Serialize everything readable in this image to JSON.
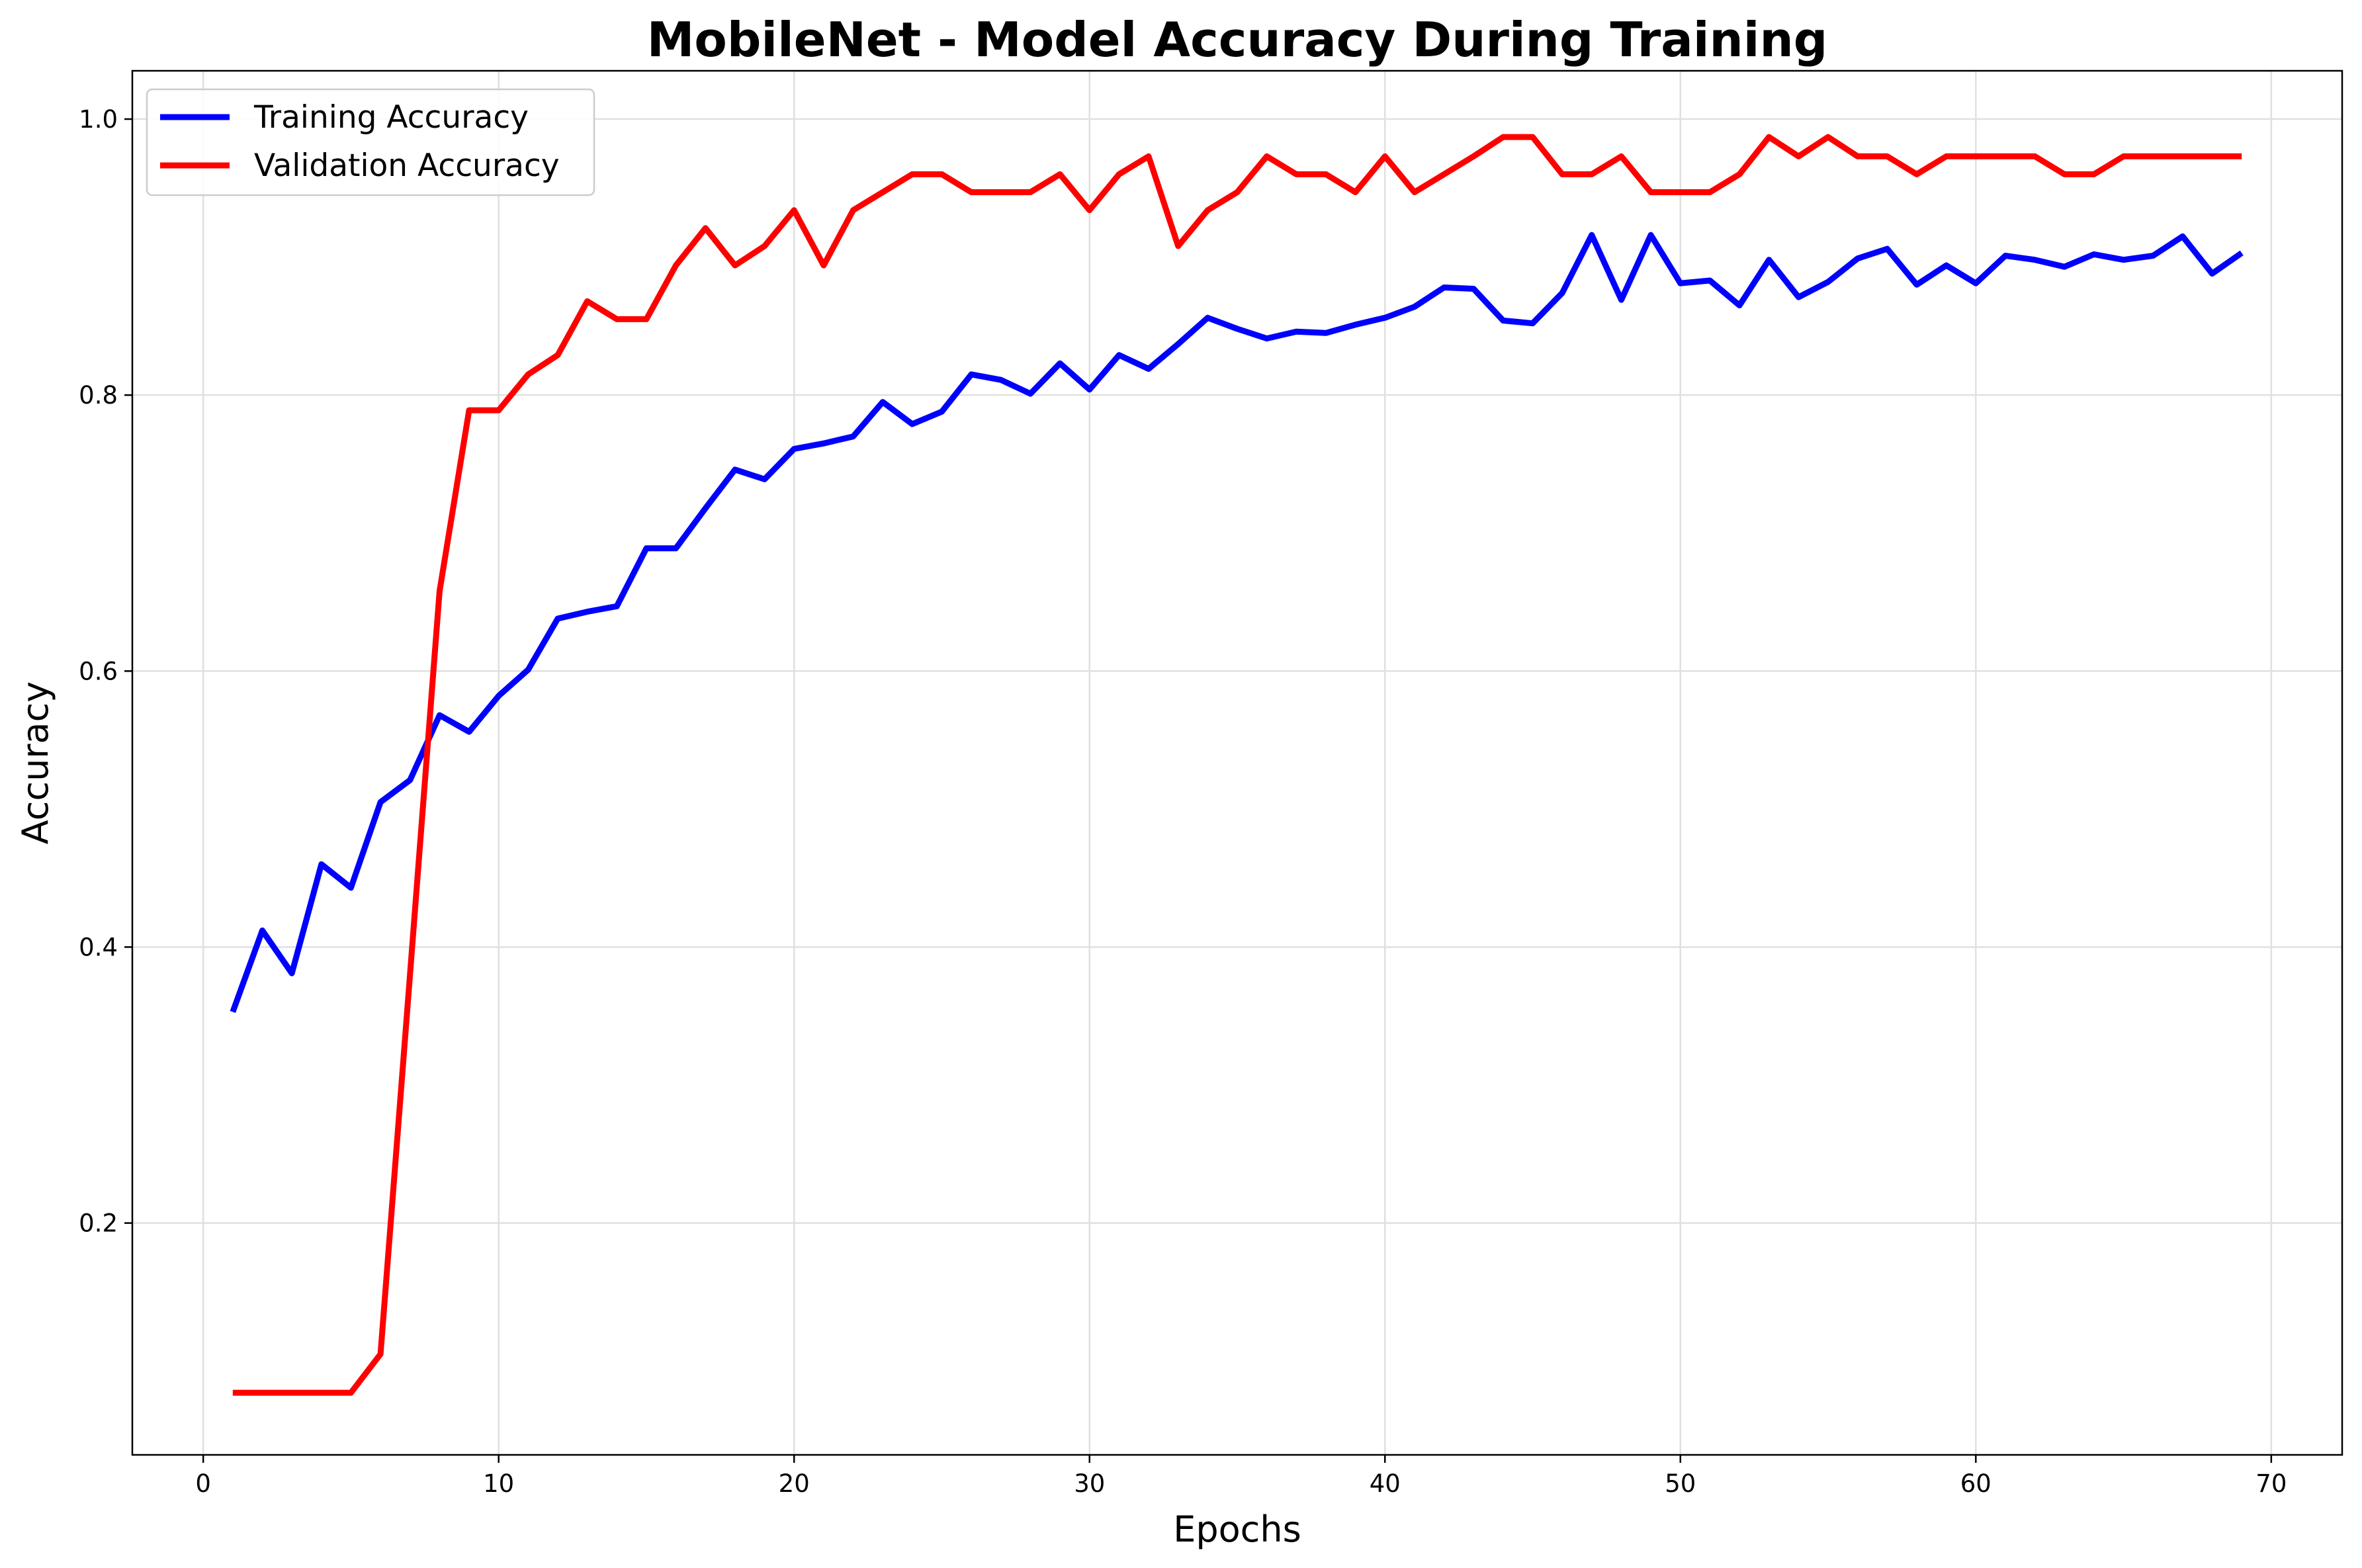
{
  "chart_data": {
    "type": "line",
    "title": "MobileNet - Model Accuracy During Training",
    "xlabel": "Epochs",
    "ylabel": "Accuracy",
    "xlim": [
      -2.4,
      72.4
    ],
    "ylim": [
      0.032,
      1.035
    ],
    "xticks": [
      0,
      10,
      20,
      30,
      40,
      50,
      60,
      70
    ],
    "xtick_labels": [
      "0",
      "10",
      "20",
      "30",
      "40",
      "50",
      "60",
      "70"
    ],
    "yticks": [
      0.2,
      0.4,
      0.6,
      0.8,
      1.0
    ],
    "ytick_labels": [
      "0.2",
      "0.4",
      "0.6",
      "0.8",
      "1.0"
    ],
    "grid": true,
    "legend_position": "top-left",
    "x": [
      1,
      2,
      3,
      4,
      5,
      6,
      7,
      8,
      9,
      10,
      11,
      12,
      13,
      14,
      15,
      16,
      17,
      18,
      19,
      20,
      21,
      22,
      23,
      24,
      25,
      26,
      27,
      28,
      29,
      30,
      31,
      32,
      33,
      34,
      35,
      36,
      37,
      38,
      39,
      40,
      41,
      42,
      43,
      44,
      45,
      46,
      47,
      48,
      49,
      50,
      51,
      52,
      53,
      54,
      55,
      56,
      57,
      58,
      59,
      60,
      61,
      62,
      63,
      64,
      65,
      66,
      67,
      68,
      69
    ],
    "series": [
      {
        "name": "Training Accuracy",
        "color": "#0000ff",
        "values": [
          0.353,
          0.412,
          0.381,
          0.46,
          0.443,
          0.505,
          0.521,
          0.568,
          0.556,
          0.582,
          0.601,
          0.638,
          0.643,
          0.647,
          0.689,
          0.689,
          0.718,
          0.746,
          0.739,
          0.761,
          0.765,
          0.77,
          0.795,
          0.779,
          0.788,
          0.815,
          0.811,
          0.801,
          0.823,
          0.804,
          0.829,
          0.819,
          0.837,
          0.856,
          0.848,
          0.841,
          0.846,
          0.845,
          0.851,
          0.856,
          0.864,
          0.878,
          0.877,
          0.854,
          0.852,
          0.874,
          0.916,
          0.869,
          0.916,
          0.881,
          0.883,
          0.865,
          0.898,
          0.871,
          0.882,
          0.899,
          0.906,
          0.88,
          0.894,
          0.881,
          0.901,
          0.898,
          0.893,
          0.902,
          0.898,
          0.901,
          0.915,
          0.888,
          0.903
        ]
      },
      {
        "name": "Validation Accuracy",
        "color": "#ff0000",
        "values": [
          0.077,
          0.077,
          0.077,
          0.077,
          0.077,
          0.105,
          0.38,
          0.658,
          0.789,
          0.789,
          0.815,
          0.829,
          0.868,
          0.855,
          0.855,
          0.894,
          0.921,
          0.894,
          0.908,
          0.934,
          0.894,
          0.934,
          0.947,
          0.96,
          0.96,
          0.947,
          0.947,
          0.947,
          0.96,
          0.934,
          0.96,
          0.973,
          0.908,
          0.934,
          0.947,
          0.973,
          0.96,
          0.96,
          0.947,
          0.973,
          0.947,
          0.96,
          0.973,
          0.987,
          0.987,
          0.96,
          0.96,
          0.973,
          0.947,
          0.947,
          0.947,
          0.96,
          0.987,
          0.973,
          0.987,
          0.973,
          0.973,
          0.96,
          0.973,
          0.973,
          0.973,
          0.973,
          0.96,
          0.96,
          0.973,
          0.973,
          0.973,
          0.973,
          0.973
        ]
      }
    ]
  }
}
